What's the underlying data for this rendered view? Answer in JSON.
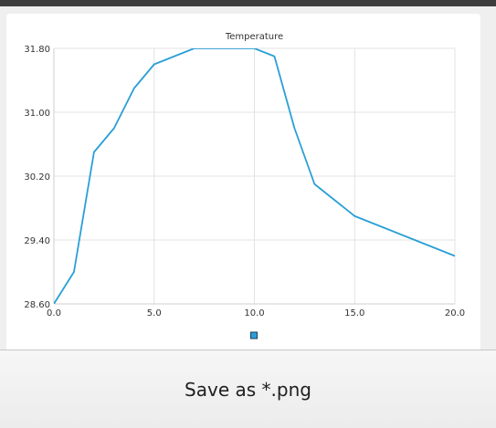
{
  "window": {
    "save_button_label": "Save as *.png"
  },
  "chart_data": {
    "type": "line",
    "title": "Temperature",
    "xlabel": "",
    "ylabel": "",
    "xlim": [
      0,
      20
    ],
    "ylim": [
      28.6,
      31.8
    ],
    "x_ticks": [
      "0.0",
      "5.0",
      "10.0",
      "15.0",
      "20.0"
    ],
    "y_ticks": [
      "31.80",
      "31.00",
      "30.20",
      "29.40",
      "28.60"
    ],
    "grid": true,
    "legend": "bottom-center",
    "series": [
      {
        "color": "#2a9fd6",
        "x": [
          0,
          1,
          2,
          3,
          4,
          5,
          6,
          7,
          8,
          9,
          10,
          11,
          12,
          13,
          14,
          15,
          16,
          17,
          18,
          19,
          20
        ],
        "y": [
          28.6,
          29.0,
          30.5,
          30.8,
          31.3,
          31.6,
          31.7,
          31.8,
          31.8,
          31.8,
          31.8,
          31.7,
          30.8,
          30.1,
          29.9,
          29.7,
          29.6,
          29.5,
          29.4,
          29.3,
          29.2
        ]
      }
    ]
  }
}
